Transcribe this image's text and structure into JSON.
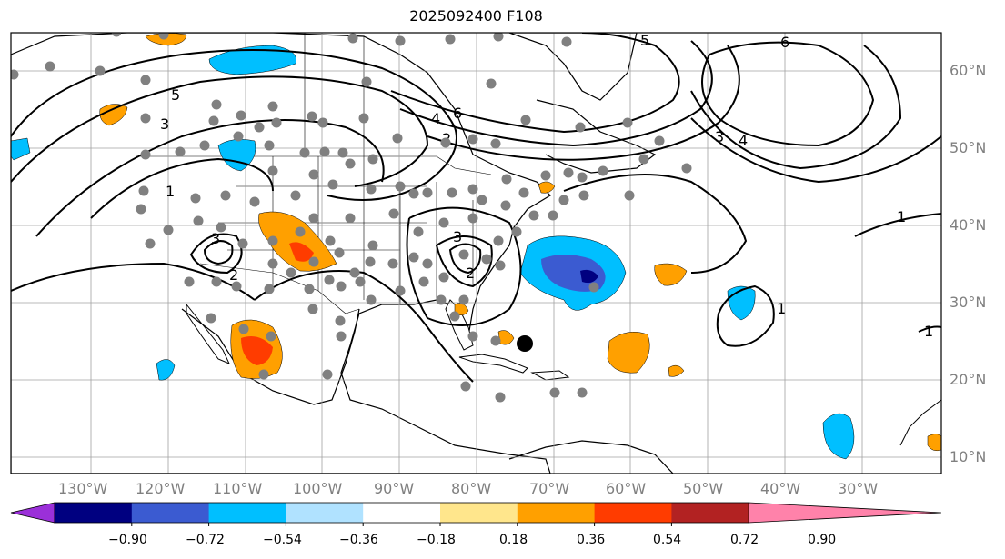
{
  "title": "2025092400 F108",
  "colors": {
    "ocean": "#ffffff",
    "grid": "#a0a0a0",
    "contour": "#000000",
    "station": "#808080",
    "storm": "#000000"
  },
  "lon_labels": [
    "130°W",
    "120°W",
    "110°W",
    "100°W",
    "90°W",
    "80°W",
    "70°W",
    "60°W",
    "50°W",
    "40°W",
    "30°W"
  ],
  "lat_labels": [
    "60°N",
    "50°N",
    "40°N",
    "30°N",
    "20°N",
    "10°N"
  ],
  "contour_labels": [
    "5",
    "3",
    "1",
    "2",
    "4",
    "6",
    "5",
    "6",
    "3",
    "4",
    "3",
    "2",
    "3",
    "2",
    "1",
    "1",
    "1"
  ],
  "colorbar": {
    "colors": [
      "#9b30d9",
      "#000080",
      "#3b5bd1",
      "#00bfff",
      "#b0e2ff",
      "#ffffff",
      "#ffe68c",
      "#ffa000",
      "#ff3c00",
      "#b22222",
      "#ff82aa"
    ],
    "tick_labels": [
      "−0.90",
      "−0.72",
      "−0.54",
      "−0.36",
      "−0.18",
      "0.18",
      "0.36",
      "0.54",
      "0.72",
      "0.90"
    ]
  }
}
